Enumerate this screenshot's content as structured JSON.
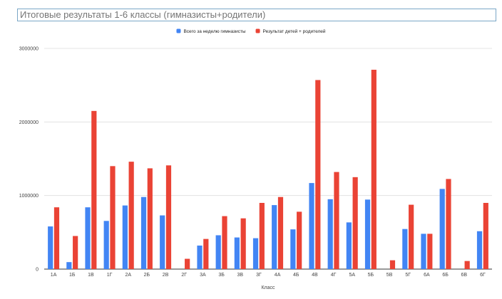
{
  "chart_data": {
    "type": "bar",
    "title": "Итоговые результаты 1-6 классы (гимназисты+родители)",
    "xlabel": "Класс",
    "ylabel": "",
    "ylim": [
      0,
      3000000
    ],
    "yticks": [
      0,
      1000000,
      2000000,
      3000000
    ],
    "grid": true,
    "legend_position": "top",
    "categories": [
      "1А",
      "1Б",
      "1В",
      "1Г",
      "2А",
      "2Б",
      "2В",
      "2Г",
      "3А",
      "3Б",
      "3В",
      "3Г",
      "4А",
      "4Б",
      "4В",
      "4Г",
      "5А",
      "5Б",
      "5В",
      "5Г",
      "6А",
      "6Б",
      "6В",
      "6Г"
    ],
    "series": [
      {
        "name": "Всего за неделю гимназисты",
        "color": "#4285f4",
        "values": [
          580000,
          95000,
          840000,
          655000,
          865000,
          980000,
          730000,
          0,
          320000,
          460000,
          430000,
          420000,
          870000,
          540000,
          1170000,
          950000,
          635000,
          945000,
          0,
          545000,
          480000,
          1090000,
          0,
          515000
        ]
      },
      {
        "name": "Результат детей + родителей",
        "color": "#ea4335",
        "values": [
          840000,
          450000,
          2150000,
          1400000,
          1460000,
          1370000,
          1410000,
          140000,
          410000,
          720000,
          690000,
          900000,
          980000,
          780000,
          2570000,
          1320000,
          1250000,
          2710000,
          120000,
          875000,
          480000,
          1225000,
          110000,
          900000
        ]
      }
    ]
  }
}
